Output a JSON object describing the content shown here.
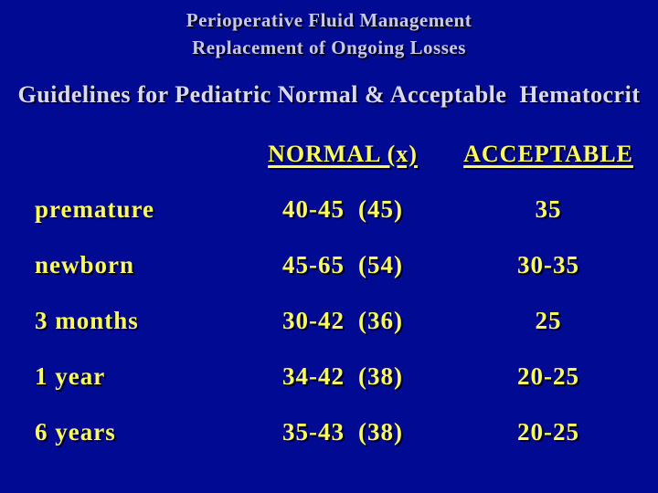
{
  "slide": {
    "background_color": "#000A93",
    "title_color": "#C8C8E8",
    "table_text_color": "#F9F960"
  },
  "header": {
    "title_line1": "Perioperative Fluid Management",
    "title_line2": "Replacement of Ongoing Losses",
    "heading": "Guidelines for Pediatric Normal & Acceptable  Hematocrit"
  },
  "table": {
    "columns": {
      "normal": "NORMAL (x)",
      "acceptable": "ACCEPTABLE"
    },
    "rows": [
      {
        "label": "premature",
        "normal_range": "40-45",
        "normal_mean": "(45)",
        "acceptable": "35"
      },
      {
        "label": "newborn",
        "normal_range": "45-65",
        "normal_mean": "(54)",
        "acceptable": "30-35"
      },
      {
        "label": "3 months",
        "normal_range": "30-42",
        "normal_mean": "(36)",
        "acceptable": "25"
      },
      {
        "label": "1 year",
        "normal_range": "34-42",
        "normal_mean": "(38)",
        "acceptable": "20-25"
      },
      {
        "label": "6 years",
        "normal_range": "35-43",
        "normal_mean": "(38)",
        "acceptable": "20-25"
      }
    ]
  }
}
